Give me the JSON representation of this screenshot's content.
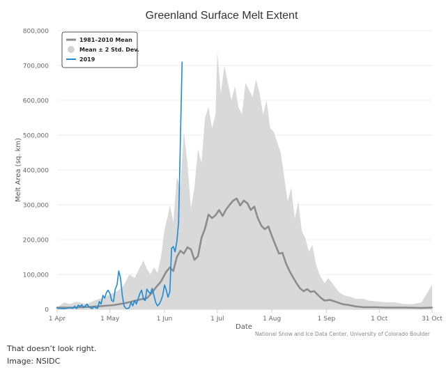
{
  "chart_data": {
    "type": "area",
    "title": "Greenland Surface Melt Extent",
    "xlabel": "Date",
    "ylabel": "Melt Area (sq. km)",
    "ylim": [
      0,
      800000
    ],
    "x_axis_range": [
      "1 Apr",
      "31 Oct"
    ],
    "y_ticks": [
      "0",
      "100,000",
      "200,000",
      "300,000",
      "400,000",
      "500,000",
      "600,000",
      "700,000",
      "800,000"
    ],
    "x_ticks": [
      "1 Apr",
      "1 May",
      "1 Jun",
      "1 Jul",
      "1 Aug",
      "1 Sep",
      "1 Oct",
      "31 Oct"
    ],
    "legend_position": "top-left",
    "grid": "horizontal",
    "source": "National Snow and Ice Data Center, University of Colorado Boulder",
    "series": [
      {
        "name": "1981–2010 Mean",
        "color": "#8c8c8c",
        "points": [
          [
            "Apr 1",
            5000
          ],
          [
            "Apr 10",
            5000
          ],
          [
            "Apr 20",
            7000
          ],
          [
            "Apr 28",
            10000
          ],
          [
            "May 3",
            12000
          ],
          [
            "May 10",
            18000
          ],
          [
            "May 18",
            28000
          ],
          [
            "May 22",
            32000
          ],
          [
            "May 25",
            48000
          ],
          [
            "May 27",
            62000
          ],
          [
            "May 30",
            80000
          ],
          [
            "Jun 2",
            108000
          ],
          [
            "Jun 4",
            120000
          ],
          [
            "Jun 6",
            110000
          ],
          [
            "Jun 8",
            150000
          ],
          [
            "Jun 10",
            168000
          ],
          [
            "Jun 12",
            160000
          ],
          [
            "Jun 14",
            178000
          ],
          [
            "Jun 16",
            172000
          ],
          [
            "Jun 18",
            142000
          ],
          [
            "Jun 20",
            152000
          ],
          [
            "Jun 22",
            205000
          ],
          [
            "Jun 24",
            232000
          ],
          [
            "Jun 26",
            272000
          ],
          [
            "Jun 28",
            262000
          ],
          [
            "Jun 30",
            270000
          ],
          [
            "Jul 2",
            285000
          ],
          [
            "Jul 4",
            268000
          ],
          [
            "Jul 6",
            287000
          ],
          [
            "Jul 8",
            300000
          ],
          [
            "Jul 10",
            312000
          ],
          [
            "Jul 12",
            318000
          ],
          [
            "Jul 14",
            298000
          ],
          [
            "Jul 16",
            312000
          ],
          [
            "Jul 18",
            305000
          ],
          [
            "Jul 20",
            285000
          ],
          [
            "Jul 22",
            295000
          ],
          [
            "Jul 24",
            262000
          ],
          [
            "Jul 26",
            240000
          ],
          [
            "Jul 28",
            230000
          ],
          [
            "Jul 30",
            238000
          ],
          [
            "Aug 1",
            210000
          ],
          [
            "Aug 3",
            185000
          ],
          [
            "Aug 5",
            160000
          ],
          [
            "Aug 7",
            162000
          ],
          [
            "Aug 9",
            132000
          ],
          [
            "Aug 11",
            110000
          ],
          [
            "Aug 13",
            92000
          ],
          [
            "Aug 15",
            75000
          ],
          [
            "Aug 17",
            60000
          ],
          [
            "Aug 19",
            52000
          ],
          [
            "Aug 21",
            58000
          ],
          [
            "Aug 23",
            50000
          ],
          [
            "Aug 25",
            52000
          ],
          [
            "Aug 27",
            42000
          ],
          [
            "Aug 29",
            32000
          ],
          [
            "Aug 31",
            25000
          ],
          [
            "Sep 3",
            27000
          ],
          [
            "Sep 6",
            22000
          ],
          [
            "Sep 10",
            15000
          ],
          [
            "Sep 14",
            12000
          ],
          [
            "Sep 18",
            8000
          ],
          [
            "Sep 22",
            6000
          ],
          [
            "Sep 28",
            6000
          ],
          [
            "Oct 5",
            5000
          ],
          [
            "Oct 15",
            5000
          ],
          [
            "Oct 25",
            4000
          ],
          [
            "Oct 31",
            5000
          ]
        ]
      },
      {
        "name": "Mean ± 2 Std. Dev.",
        "color": "#d9d9d9",
        "points": [
          [
            "Apr 1",
            5000
          ],
          [
            "Apr 5",
            20000
          ],
          [
            "Apr 8",
            15000
          ],
          [
            "Apr 12",
            22000
          ],
          [
            "Apr 18",
            15000
          ],
          [
            "Apr 22",
            25000
          ],
          [
            "Apr 28",
            35000
          ],
          [
            "May 2",
            45000
          ],
          [
            "May 6",
            55000
          ],
          [
            "May 9",
            70000
          ],
          [
            "May 12",
            100000
          ],
          [
            "May 15",
            90000
          ],
          [
            "May 18",
            120000
          ],
          [
            "May 20",
            140000
          ],
          [
            "May 22",
            115000
          ],
          [
            "May 24",
            100000
          ],
          [
            "May 26",
            120000
          ],
          [
            "May 28",
            105000
          ],
          [
            "May 30",
            150000
          ],
          [
            "Jun 1",
            230000
          ],
          [
            "Jun 3",
            270000
          ],
          [
            "Jun 4",
            300000
          ],
          [
            "Jun 6",
            250000
          ],
          [
            "Jun 8",
            380000
          ],
          [
            "Jun 10",
            350000
          ],
          [
            "Jun 12",
            510000
          ],
          [
            "Jun 14",
            420000
          ],
          [
            "Jun 16",
            290000
          ],
          [
            "Jun 18",
            350000
          ],
          [
            "Jun 20",
            460000
          ],
          [
            "Jun 22",
            420000
          ],
          [
            "Jun 24",
            550000
          ],
          [
            "Jun 26",
            580000
          ],
          [
            "Jun 28",
            520000
          ],
          [
            "Jun 30",
            560000
          ],
          [
            "Jul 1",
            740000
          ],
          [
            "Jul 3",
            620000
          ],
          [
            "Jul 5",
            700000
          ],
          [
            "Jul 7",
            650000
          ],
          [
            "Jul 9",
            600000
          ],
          [
            "Jul 11",
            640000
          ],
          [
            "Jul 13",
            580000
          ],
          [
            "Jul 15",
            560000
          ],
          [
            "Jul 17",
            650000
          ],
          [
            "Jul 19",
            630000
          ],
          [
            "Jul 21",
            610000
          ],
          [
            "Jul 23",
            660000
          ],
          [
            "Jul 25",
            620000
          ],
          [
            "Jul 27",
            560000
          ],
          [
            "Jul 29",
            600000
          ],
          [
            "Jul 31",
            520000
          ],
          [
            "Aug 2",
            510000
          ],
          [
            "Aug 4",
            480000
          ],
          [
            "Aug 6",
            450000
          ],
          [
            "Aug 8",
            380000
          ],
          [
            "Aug 10",
            310000
          ],
          [
            "Aug 12",
            350000
          ],
          [
            "Aug 14",
            260000
          ],
          [
            "Aug 16",
            310000
          ],
          [
            "Aug 18",
            225000
          ],
          [
            "Aug 20",
            205000
          ],
          [
            "Aug 22",
            165000
          ],
          [
            "Aug 24",
            185000
          ],
          [
            "Aug 26",
            130000
          ],
          [
            "Aug 28",
            100000
          ],
          [
            "Aug 31",
            75000
          ],
          [
            "Sep 2",
            90000
          ],
          [
            "Sep 5",
            70000
          ],
          [
            "Sep 8",
            50000
          ],
          [
            "Sep 11",
            40000
          ],
          [
            "Sep 15",
            35000
          ],
          [
            "Sep 18",
            30000
          ],
          [
            "Sep 22",
            30000
          ],
          [
            "Sep 25",
            25000
          ],
          [
            "Oct 1",
            22000
          ],
          [
            "Oct 5",
            20000
          ],
          [
            "Oct 10",
            20000
          ],
          [
            "Oct 15",
            15000
          ],
          [
            "Oct 20",
            15000
          ],
          [
            "Oct 25",
            20000
          ],
          [
            "Oct 31",
            70000
          ]
        ]
      },
      {
        "name": "2019",
        "color": "#1e8ad6",
        "points": [
          [
            "Apr 1",
            3000
          ],
          [
            "Apr 5",
            2000
          ],
          [
            "Apr 8",
            4000
          ],
          [
            "Apr 10",
            3000
          ],
          [
            "Apr 11",
            9000
          ],
          [
            "Apr 12",
            2000
          ],
          [
            "Apr 13",
            12000
          ],
          [
            "Apr 14",
            8000
          ],
          [
            "Apr 15",
            13000
          ],
          [
            "Apr 16",
            5000
          ],
          [
            "Apr 17",
            10000
          ],
          [
            "Apr 18",
            15000
          ],
          [
            "Apr 19",
            8000
          ],
          [
            "Apr 20",
            4000
          ],
          [
            "Apr 21",
            2000
          ],
          [
            "Apr 22",
            8000
          ],
          [
            "Apr 23",
            4000
          ],
          [
            "Apr 24",
            3000
          ],
          [
            "Apr 25",
            22000
          ],
          [
            "Apr 26",
            15000
          ],
          [
            "Apr 27",
            40000
          ],
          [
            "Apr 28",
            32000
          ],
          [
            "Apr 29",
            48000
          ],
          [
            "Apr 30",
            55000
          ],
          [
            "May 1",
            45000
          ],
          [
            "May 2",
            25000
          ],
          [
            "May 3",
            22000
          ],
          [
            "May 4",
            58000
          ],
          [
            "May 5",
            70000
          ],
          [
            "May 6",
            110000
          ],
          [
            "May 7",
            90000
          ],
          [
            "May 8",
            40000
          ],
          [
            "May 9",
            10000
          ],
          [
            "May 10",
            3000
          ],
          [
            "May 11",
            2000
          ],
          [
            "May 12",
            5000
          ],
          [
            "May 13",
            20000
          ],
          [
            "May 14",
            10000
          ],
          [
            "May 15",
            25000
          ],
          [
            "May 16",
            15000
          ],
          [
            "May 17",
            30000
          ],
          [
            "May 18",
            45000
          ],
          [
            "May 19",
            55000
          ],
          [
            "May 20",
            30000
          ],
          [
            "May 21",
            25000
          ],
          [
            "May 22",
            58000
          ],
          [
            "May 23",
            50000
          ],
          [
            "May 24",
            45000
          ],
          [
            "May 25",
            60000
          ],
          [
            "May 26",
            40000
          ],
          [
            "May 27",
            20000
          ],
          [
            "May 28",
            10000
          ],
          [
            "May 29",
            15000
          ],
          [
            "May 30",
            25000
          ],
          [
            "May 31",
            40000
          ],
          [
            "Jun 1",
            70000
          ],
          [
            "Jun 2",
            55000
          ],
          [
            "Jun 3",
            35000
          ],
          [
            "Jun 4",
            50000
          ],
          [
            "Jun 5",
            175000
          ],
          [
            "Jun 6",
            180000
          ],
          [
            "Jun 7",
            165000
          ],
          [
            "Jun 8",
            195000
          ],
          [
            "Jun 9",
            250000
          ],
          [
            "Jun 10",
            480000
          ],
          [
            "Jun 11",
            710000
          ]
        ]
      }
    ]
  },
  "captions": {
    "line1": "That doesn’t look right.",
    "line2": "Image: NSIDC"
  }
}
